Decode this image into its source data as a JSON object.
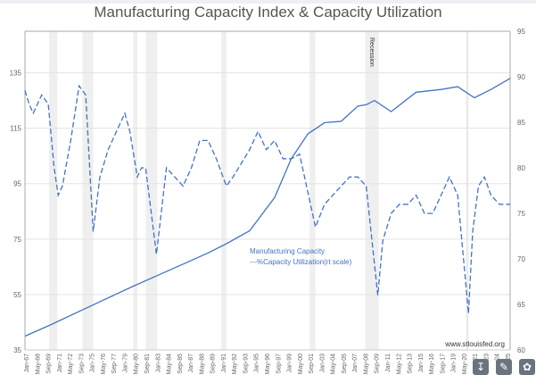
{
  "chart_data": {
    "type": "line",
    "title": "Manufacturing Capacity Index & Capacity Utilization",
    "xlabel": "",
    "ylabel_left": "",
    "ylabel_right": "",
    "x_range": [
      1967,
      2025.3
    ],
    "ylim_left": [
      35,
      150
    ],
    "ylim_right": [
      60,
      95
    ],
    "left_ticks": [
      35,
      55,
      75,
      95,
      115,
      135
    ],
    "right_ticks": [
      60,
      65,
      70,
      75,
      80,
      85,
      90,
      95
    ],
    "x_tick_labels": [
      "Jan-67",
      "May-68",
      "Sep-69",
      "Jan-71",
      "May-72",
      "Sep-73",
      "Jan-75",
      "May-76",
      "Sep-77",
      "Jan-79",
      "May-80",
      "Sep-81",
      "Jan-83",
      "May-84",
      "Sep-85",
      "Jan-87",
      "May-88",
      "Sep-89",
      "Jan-91",
      "May-92",
      "Sep-93",
      "Jan-95",
      "May-96",
      "Sep-97",
      "Jan-99",
      "May-00",
      "Sep-01",
      "Jan-03",
      "May-04",
      "Sep-05",
      "Jan-07",
      "May-08",
      "Sep-09",
      "Jan-11",
      "May-12",
      "Sep-13",
      "Jan-15",
      "May-16",
      "Sep-17",
      "Jan-19",
      "May-20",
      "21",
      "23",
      "24",
      "25"
    ],
    "grid": true,
    "legend": [
      "Manufacturing Capacity",
      "---%Capacity Utilization(rt scale)"
    ],
    "legend_position": "center-bottom",
    "recession_label": "Recession",
    "recessions": [
      [
        1969.9,
        1970.9
      ],
      [
        1973.9,
        1975.2
      ],
      [
        1980.0,
        1980.5
      ],
      [
        1981.5,
        1982.9
      ],
      [
        1990.6,
        1991.2
      ],
      [
        2001.2,
        2001.9
      ],
      [
        2007.9,
        2009.5
      ],
      [
        2020.1,
        2020.3
      ]
    ],
    "series": [
      {
        "name": "Manufacturing Capacity",
        "axis": "left",
        "style": "solid",
        "x": [
          1967,
          1970,
          1975,
          1980,
          1983,
          1986,
          1989,
          1991,
          1994,
          1997,
          1999,
          2001,
          2003,
          2005,
          2007,
          2008,
          2009,
          2011,
          2014,
          2017,
          2019,
          2021,
          2023,
          2025.3
        ],
        "values": [
          40,
          44,
          51,
          58,
          62,
          66,
          70,
          73,
          78,
          90,
          104,
          113,
          117,
          117.5,
          123,
          123.5,
          125,
          121,
          128,
          129,
          130,
          126,
          129,
          133
        ]
      },
      {
        "name": "%Capacity Utilization",
        "axis": "right",
        "style": "dashed",
        "x": [
          1967,
          1967.5,
          1968,
          1969,
          1969.8,
          1970.5,
          1971,
          1971.5,
          1972.5,
          1973.5,
          1974.3,
          1975.2,
          1976,
          1977,
          1978,
          1979,
          1979.6,
          1980.5,
          1981,
          1981.5,
          1982.8,
          1984,
          1985,
          1986,
          1987,
          1988,
          1989,
          1990,
          1991.2,
          1992,
          1994,
          1995,
          1996,
          1997,
          1998,
          1999,
          2000,
          2001.9,
          2003,
          2004,
          2005,
          2006,
          2007,
          2008,
          2009.4,
          2010,
          2011,
          2012,
          2013,
          2014,
          2015,
          2016,
          2017,
          2018,
          2019,
          2020.3,
          2020.8,
          2021.5,
          2022.2,
          2023,
          2024,
          2025.3
        ],
        "values": [
          88.5,
          87,
          86,
          88,
          87,
          80,
          77,
          78,
          83,
          89,
          88,
          73,
          79,
          82,
          84,
          86,
          84,
          79,
          80,
          80,
          70.5,
          80,
          79,
          78,
          80,
          83,
          83,
          81,
          78,
          79,
          82,
          84,
          82,
          83,
          81,
          81,
          81.5,
          73.5,
          76,
          77,
          78,
          79,
          79,
          78,
          66,
          72,
          75,
          76,
          76,
          77,
          75,
          75,
          77,
          79,
          77,
          64,
          73,
          78,
          79,
          77,
          76,
          76
        ]
      }
    ]
  },
  "source": "www.stlouisfed.org",
  "tools": {
    "download_icon": "download-icon",
    "annotate_icon": "annotate-icon",
    "share_icon": "share-icon"
  }
}
